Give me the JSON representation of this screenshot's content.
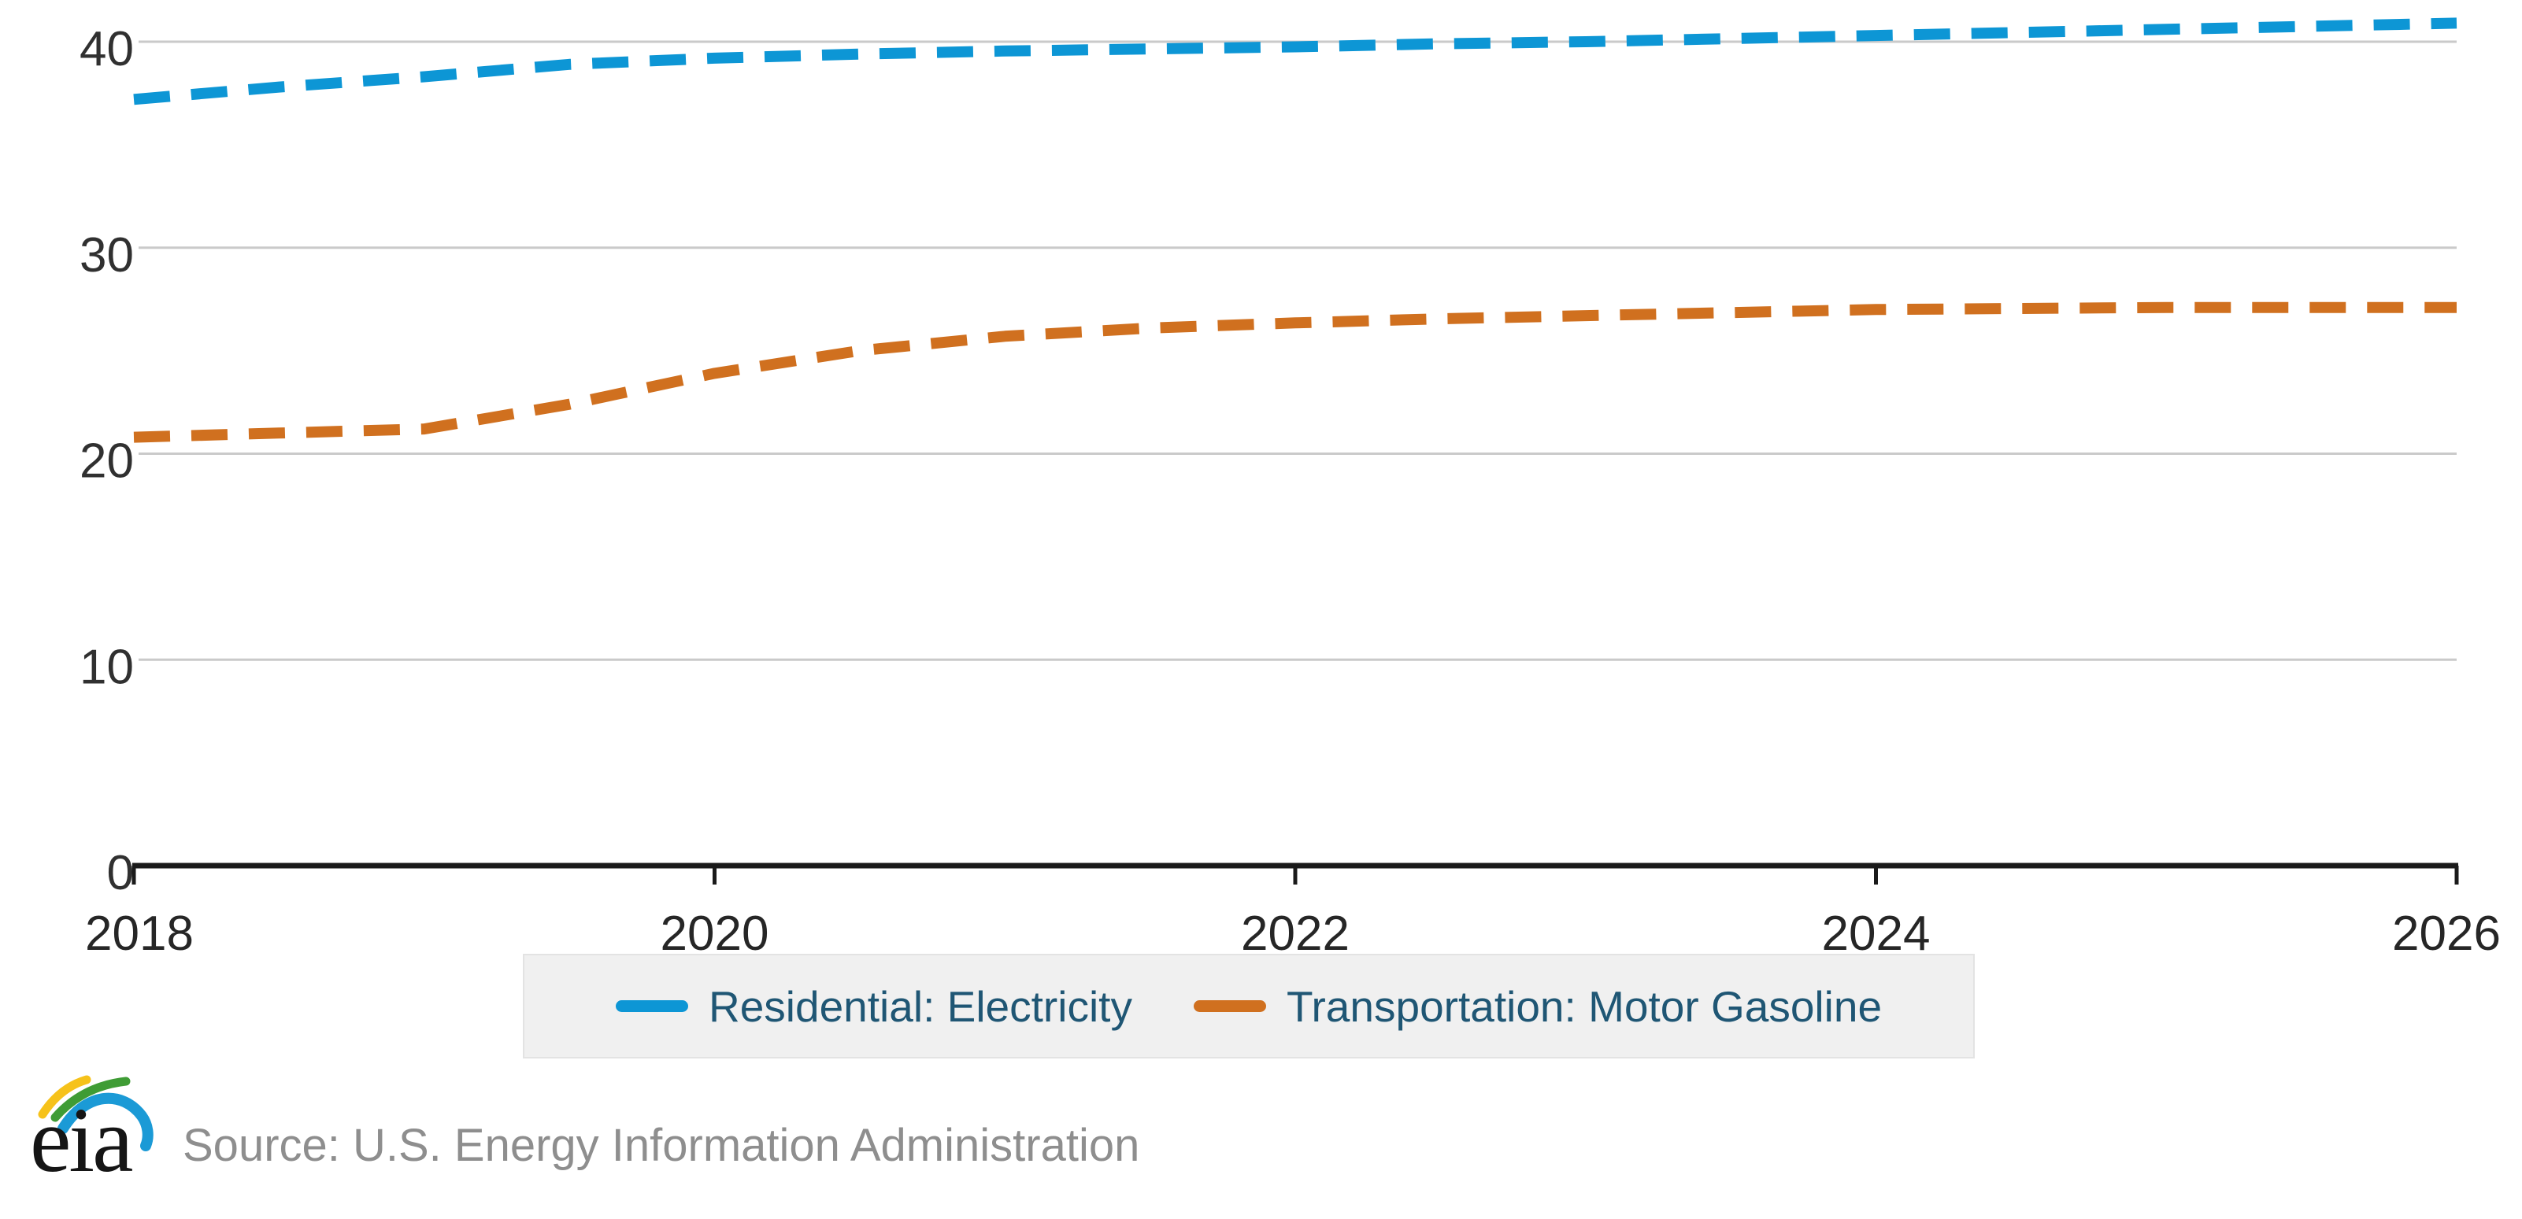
{
  "chart_data": {
    "type": "line",
    "title": "",
    "xlabel": "",
    "ylabel": "",
    "x_axis": {
      "ticks": [
        2018,
        2020,
        2022,
        2024,
        2026
      ],
      "range": [
        2018,
        2026
      ]
    },
    "y_axis": {
      "ticks": [
        40,
        30,
        20,
        10,
        0
      ],
      "range": [
        0,
        42
      ],
      "gridlines": true
    },
    "line_style": "dashed",
    "legend_position": "bottom-center",
    "series": [
      {
        "name": "Residential: Electricity",
        "color": "#0d96d5",
        "x": [
          2018,
          2018.5,
          2019,
          2019.5,
          2020,
          2020.5,
          2021,
          2021.5,
          2022,
          2022.5,
          2023,
          2023.5,
          2024,
          2024.5,
          2025,
          2025.5,
          2026
        ],
        "values": [
          37.2,
          37.8,
          38.3,
          38.9,
          39.2,
          39.4,
          39.55,
          39.65,
          39.75,
          39.9,
          40.0,
          40.15,
          40.3,
          40.45,
          40.6,
          40.75,
          40.9
        ]
      },
      {
        "name": "Transportation: Motor Gasoline",
        "color": "#d0701f",
        "x": [
          2018,
          2018.5,
          2019,
          2019.5,
          2020,
          2020.5,
          2021,
          2021.5,
          2022,
          2022.5,
          2023,
          2023.5,
          2024,
          2024.5,
          2025,
          2025.5,
          2026
        ],
        "values": [
          20.8,
          21.0,
          21.2,
          22.4,
          23.9,
          25.0,
          25.7,
          26.1,
          26.35,
          26.55,
          26.7,
          26.85,
          27.0,
          27.05,
          27.1,
          27.1,
          27.1
        ]
      }
    ]
  },
  "colors": {
    "axis": "#1a1a1a",
    "grid": "#cacaca",
    "tick_text": "#303030",
    "legend_text": "#1f5674",
    "legend_bg": "#f0f0f0",
    "source_text": "#8e8e8e",
    "logo_yellow": "#f6c21a",
    "logo_green": "#3f9c35",
    "logo_blue": "#1b9ad6",
    "logo_text_color": "#151515"
  },
  "source": {
    "logo_text": "eia",
    "text": "Source: U.S. Energy Information Administration"
  }
}
